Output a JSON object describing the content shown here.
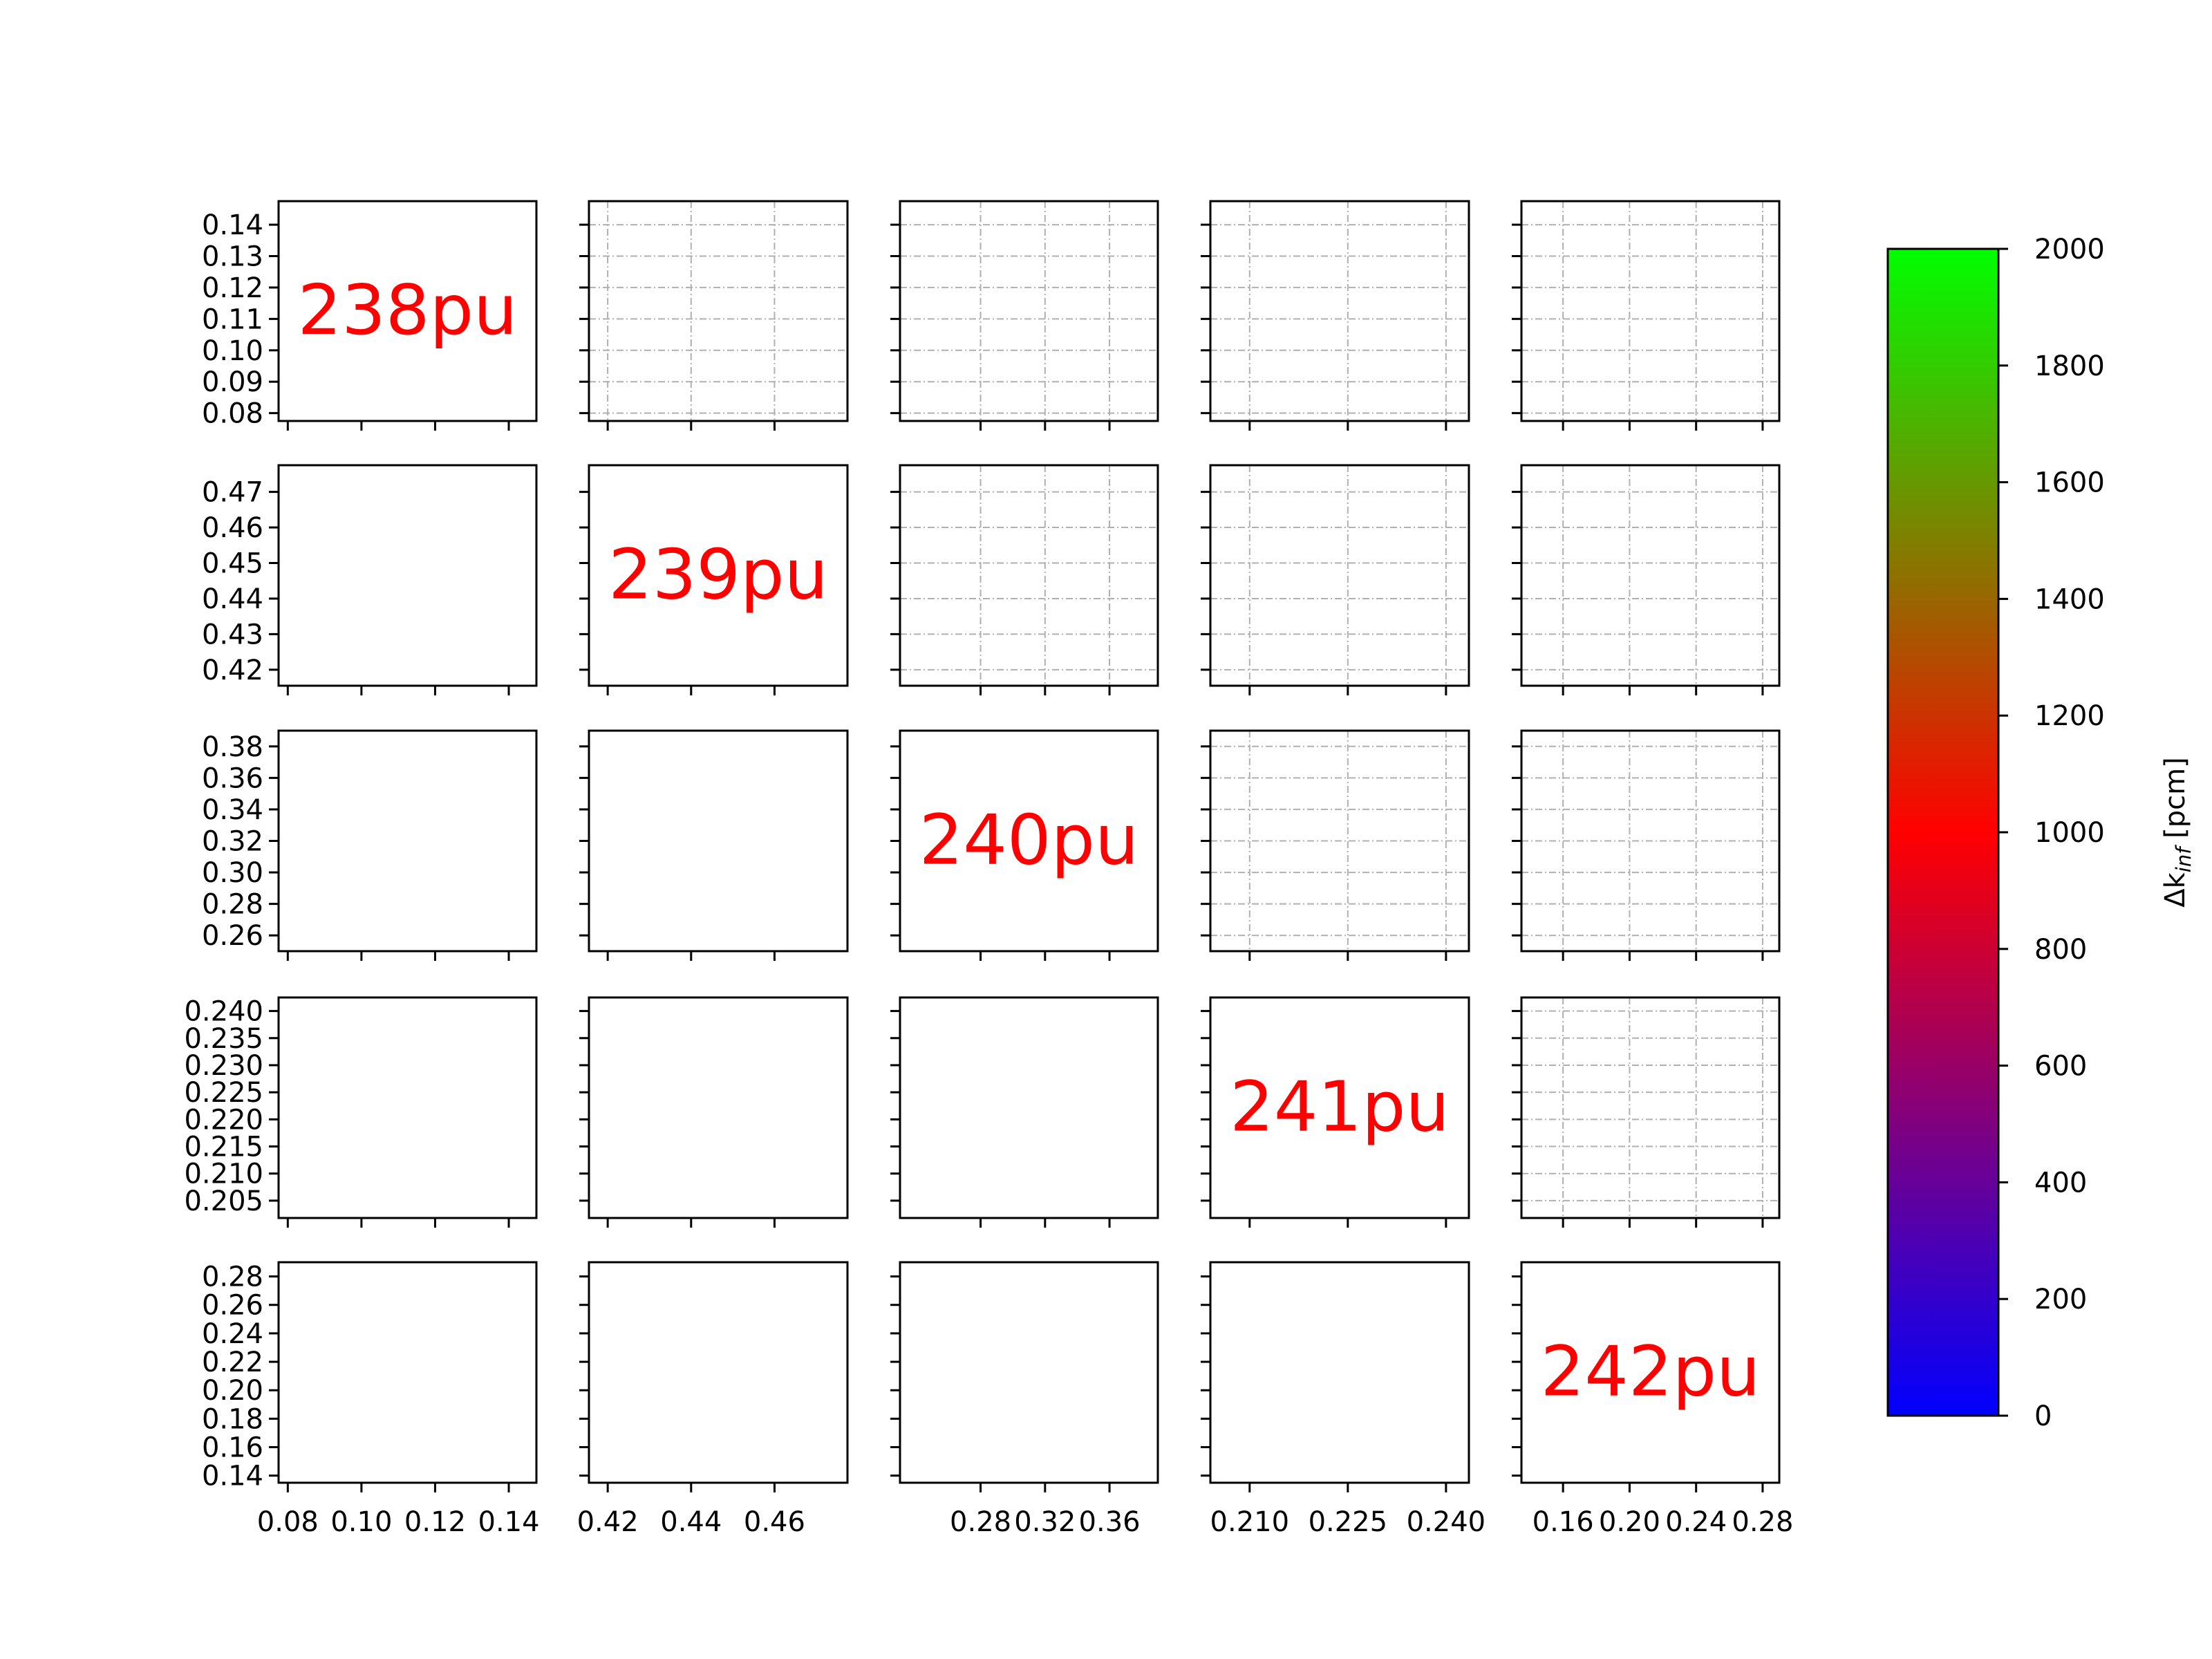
{
  "chart_data": {
    "type": "scatter",
    "layout": "5x5 pair-plot matrix, lower triangle empty, upper triangle with dashed grid",
    "diagonal_labels": [
      "238pu",
      "239pu",
      "240pu",
      "241pu",
      "242pu"
    ],
    "label_color": "#ff0000",
    "grid": "upper triangle only, dash-dot light grey",
    "axes": [
      {
        "ticks": [
          "0.08",
          "0.09",
          "0.10",
          "0.11",
          "0.12",
          "0.13",
          "0.14"
        ],
        "ylim": [
          0.0775,
          0.1475
        ],
        "xticks": [
          "0.08",
          "0.10",
          "0.12",
          "0.14"
        ],
        "xlim": [
          0.0775,
          0.1475
        ]
      },
      {
        "ticks": [
          "0.42",
          "0.43",
          "0.44",
          "0.45",
          "0.46",
          "0.47"
        ],
        "ylim": [
          0.4155,
          0.4775
        ],
        "xticks": [
          "0.42",
          "0.44",
          "0.46"
        ],
        "xlim": [
          0.4155,
          0.4775
        ]
      },
      {
        "ticks": [
          "0.26",
          "0.28",
          "0.30",
          "0.32",
          "0.34",
          "0.36",
          "0.38"
        ],
        "ylim": [
          0.25,
          0.39
        ],
        "xticks": [
          "0.28",
          "0.32",
          "0.36"
        ],
        "xlim": [
          0.23,
          0.39
        ]
      },
      {
        "ticks": [
          "0.205",
          "0.210",
          "0.215",
          "0.220",
          "0.225",
          "0.230",
          "0.235",
          "0.240"
        ],
        "ylim": [
          0.2018,
          0.2425
        ],
        "xticks": [
          "0.210",
          "0.225",
          "0.240"
        ],
        "xlim": [
          0.204,
          0.2435
        ]
      },
      {
        "ticks": [
          "0.14",
          "0.16",
          "0.18",
          "0.20",
          "0.22",
          "0.24",
          "0.26",
          "0.28"
        ],
        "ylim": [
          0.135,
          0.29
        ],
        "xticks": [
          "0.16",
          "0.20",
          "0.24",
          "0.28"
        ],
        "xlim": [
          0.135,
          0.29
        ]
      }
    ],
    "series": [],
    "colorbar": {
      "label_prefix": "Δk",
      "label_subscript": "inf",
      "label_suffix": "[pcm]",
      "min": 0,
      "max": 2000,
      "ticks": [
        "0",
        "200",
        "400",
        "600",
        "800",
        "1000",
        "1200",
        "1400",
        "1600",
        "1800",
        "2000"
      ],
      "colors": [
        "#0000ff",
        "#ff0000",
        "#00ff00"
      ]
    }
  }
}
